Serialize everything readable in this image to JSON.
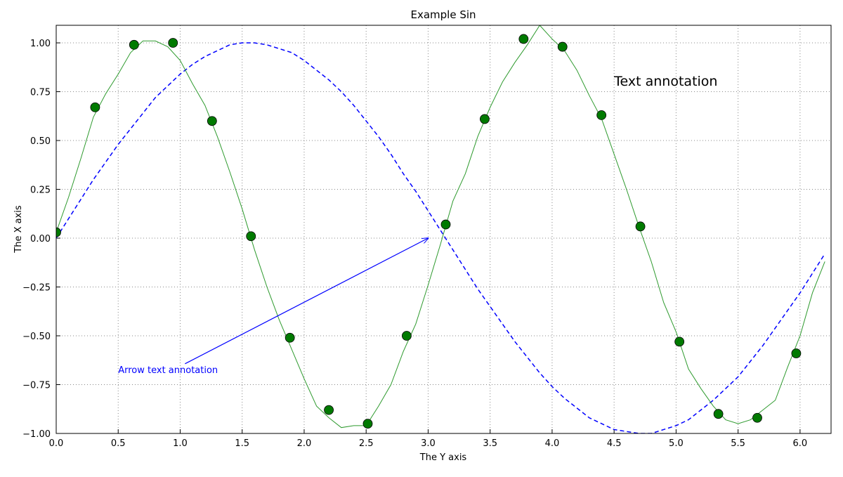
{
  "chart_data": {
    "type": "line",
    "title": "Example Sin",
    "xlabel": "The Y axis",
    "ylabel": "The X axis",
    "xlim": [
      0,
      6.25
    ],
    "ylim": [
      -1.0,
      1.09
    ],
    "xticks": [
      {
        "value": 0,
        "label": "0.0"
      },
      {
        "value": 0.5,
        "label": "0.5"
      },
      {
        "value": 1,
        "label": "1.0"
      },
      {
        "value": 1.5,
        "label": "1.5"
      },
      {
        "value": 2,
        "label": "2.0"
      },
      {
        "value": 2.5,
        "label": "2.5"
      },
      {
        "value": 3,
        "label": "3.0"
      },
      {
        "value": 3.5,
        "label": "3.5"
      },
      {
        "value": 4,
        "label": "4.0"
      },
      {
        "value": 4.5,
        "label": "4.5"
      },
      {
        "value": 5,
        "label": "5.0"
      },
      {
        "value": 5.5,
        "label": "5.5"
      },
      {
        "value": 6,
        "label": "6.0"
      }
    ],
    "yticks": [
      {
        "value": -1,
        "label": "−1.00"
      },
      {
        "value": -0.75,
        "label": "−0.75"
      },
      {
        "value": -0.5,
        "label": "−0.50"
      },
      {
        "value": -0.25,
        "label": "−0.25"
      },
      {
        "value": 0,
        "label": "0.00"
      },
      {
        "value": 0.25,
        "label": "0.25"
      },
      {
        "value": 0.5,
        "label": "0.50"
      },
      {
        "value": 0.75,
        "label": "0.75"
      },
      {
        "value": 1,
        "label": "1.00"
      }
    ],
    "grid": true,
    "series": [
      {
        "color": "#0000ff",
        "style": "dashed",
        "x": [
          0,
          0.1,
          0.2,
          0.3,
          0.4,
          0.5,
          0.6,
          0.7,
          0.8,
          0.9,
          1.0,
          1.1,
          1.2,
          1.3,
          1.4,
          1.5,
          1.6,
          1.7,
          1.8,
          1.9,
          2.0,
          2.1,
          2.2,
          2.3,
          2.4,
          2.5,
          2.6,
          2.7,
          2.8,
          2.9,
          3.0,
          3.1,
          3.2,
          3.3,
          3.4,
          3.5,
          3.6,
          3.7,
          3.8,
          3.9,
          4.0,
          4.1,
          4.2,
          4.3,
          4.4,
          4.5,
          4.6,
          4.7,
          4.8,
          4.9,
          5.0,
          5.1,
          5.2,
          5.3,
          5.4,
          5.5,
          5.6,
          5.7,
          5.8,
          5.9,
          6.0,
          6.1,
          6.2
        ],
        "values": [
          0,
          0.1,
          0.2,
          0.3,
          0.39,
          0.48,
          0.56,
          0.64,
          0.72,
          0.78,
          0.84,
          0.89,
          0.93,
          0.96,
          0.99,
          1.0,
          1.0,
          0.99,
          0.97,
          0.95,
          0.91,
          0.86,
          0.81,
          0.75,
          0.68,
          0.6,
          0.52,
          0.43,
          0.33,
          0.24,
          0.14,
          0.04,
          -0.06,
          -0.16,
          -0.26,
          -0.35,
          -0.44,
          -0.53,
          -0.61,
          -0.69,
          -0.76,
          -0.82,
          -0.87,
          -0.92,
          -0.95,
          -0.98,
          -0.99,
          -1.0,
          -1.0,
          -0.98,
          -0.96,
          -0.93,
          -0.88,
          -0.83,
          -0.77,
          -0.71,
          -0.63,
          -0.55,
          -0.46,
          -0.37,
          -0.28,
          -0.18,
          -0.08
        ]
      },
      {
        "color": "#2e9a2e",
        "style": "solid",
        "x": [
          0,
          0.1,
          0.2,
          0.3,
          0.4,
          0.5,
          0.6,
          0.7,
          0.8,
          0.9,
          1.0,
          1.1,
          1.2,
          1.3,
          1.4,
          1.5,
          1.6,
          1.7,
          1.8,
          1.9,
          2.0,
          2.1,
          2.2,
          2.3,
          2.4,
          2.5,
          2.6,
          2.7,
          2.8,
          2.9,
          3.0,
          3.1,
          3.2,
          3.3,
          3.4,
          3.5,
          3.6,
          3.7,
          3.8,
          3.9,
          4.0,
          4.1,
          4.2,
          4.3,
          4.4,
          4.5,
          4.6,
          4.7,
          4.8,
          4.9,
          5.0,
          5.1,
          5.2,
          5.3,
          5.4,
          5.5,
          5.6,
          5.7,
          5.8,
          5.9,
          6.0,
          6.1,
          6.2
        ],
        "values": [
          0.03,
          0.21,
          0.41,
          0.62,
          0.74,
          0.84,
          0.95,
          1.01,
          1.01,
          0.98,
          0.91,
          0.79,
          0.68,
          0.52,
          0.34,
          0.15,
          -0.06,
          -0.25,
          -0.42,
          -0.57,
          -0.72,
          -0.86,
          -0.92,
          -0.97,
          -0.96,
          -0.96,
          -0.86,
          -0.75,
          -0.58,
          -0.44,
          -0.24,
          -0.03,
          0.19,
          0.33,
          0.52,
          0.67,
          0.8,
          0.9,
          0.99,
          1.09,
          1.02,
          0.96,
          0.86,
          0.73,
          0.61,
          0.43,
          0.25,
          0.06,
          -0.12,
          -0.33,
          -0.48,
          -0.67,
          -0.77,
          -0.86,
          -0.93,
          -0.95,
          -0.93,
          -0.88,
          -0.83,
          -0.66,
          -0.5,
          -0.28,
          -0.12
        ]
      },
      {
        "color": "#007a00",
        "style": "markers",
        "x": [
          0,
          0.314,
          0.628,
          0.942,
          1.257,
          1.571,
          1.885,
          2.199,
          2.513,
          2.827,
          3.142,
          3.456,
          3.77,
          4.084,
          4.398,
          4.712,
          5.027,
          5.341,
          5.655,
          5.969
        ],
        "values": [
          0.03,
          0.67,
          0.99,
          1.0,
          0.6,
          0.01,
          -0.51,
          -0.88,
          -0.95,
          -0.5,
          0.07,
          0.61,
          1.02,
          0.98,
          0.63,
          0.06,
          -0.53,
          -0.9,
          -0.92,
          -0.59
        ]
      }
    ],
    "annotations": [
      {
        "text": "Text annotation",
        "x": 4.5,
        "y": 0.78,
        "color": "#000000"
      },
      {
        "text": "Arrow text annotation",
        "x": 0.5,
        "y": -0.69,
        "color": "#0000ff",
        "arrow_to": [
          3.0,
          0.0
        ]
      }
    ]
  }
}
